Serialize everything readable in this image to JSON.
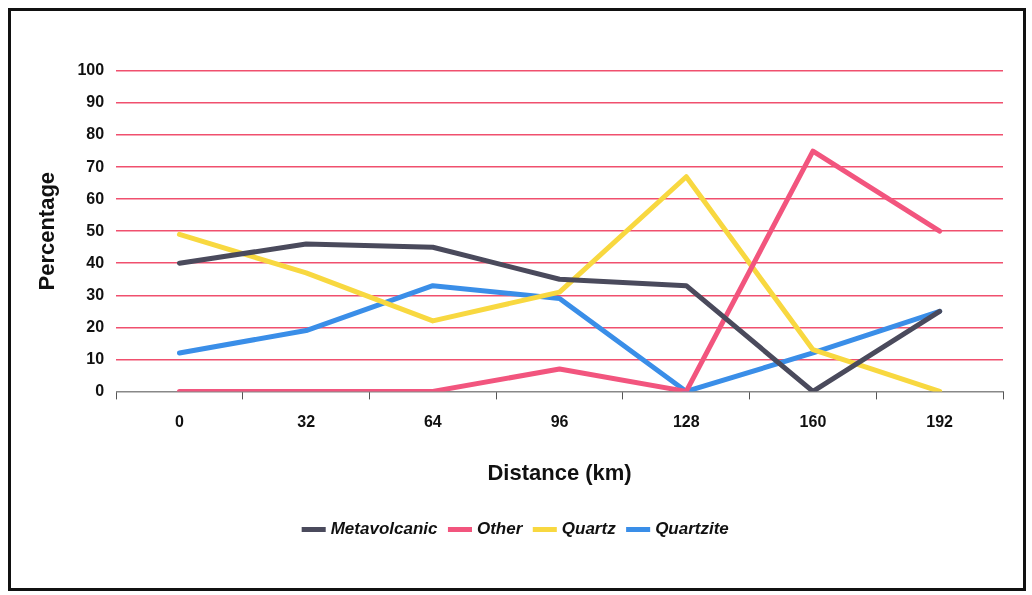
{
  "chart_data": {
    "type": "line",
    "xlabel": "Distance (km)",
    "ylabel": "Percentage",
    "categories": [
      "0",
      "32",
      "64",
      "96",
      "128",
      "160",
      "192"
    ],
    "series": [
      {
        "name": "Metavolcanic",
        "color": "#4a4a5c",
        "values": [
          40,
          46,
          45,
          35,
          33,
          0,
          25
        ]
      },
      {
        "name": "Other",
        "color": "#f2557e",
        "values": [
          0,
          0,
          0,
          7,
          0,
          75,
          50
        ]
      },
      {
        "name": "Quartz",
        "color": "#f8d840",
        "values": [
          49,
          37,
          22,
          31,
          67,
          13,
          0
        ]
      },
      {
        "name": "Quartzite",
        "color": "#3a8ee8",
        "values": [
          12,
          19,
          33,
          29,
          0,
          12,
          25
        ]
      }
    ],
    "ylim": [
      0,
      100
    ],
    "yticks": [
      0,
      10,
      20,
      30,
      40,
      50,
      60,
      70,
      80,
      90,
      100
    ],
    "grid": "y",
    "legend": "bottom",
    "marker": "none",
    "line_style": "solid"
  }
}
